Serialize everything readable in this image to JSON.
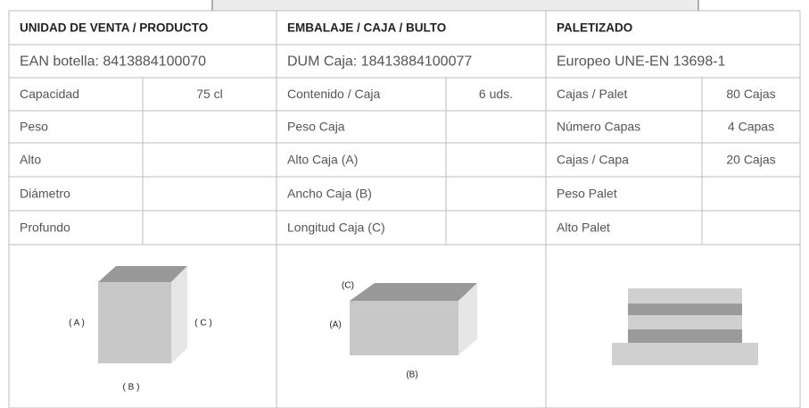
{
  "sections": [
    {
      "title": "UNIDAD DE VENTA / PRODUCTO",
      "code": "EAN botella:  8413884100070",
      "rows": [
        [
          "Capacidad",
          "75 cl"
        ],
        [
          "Peso"
        ],
        [
          "Alto"
        ],
        [
          "Diámetro"
        ],
        [
          "Profundo"
        ]
      ],
      "diagram_labels": [
        "( A )",
        "( C )",
        "( B )"
      ]
    },
    {
      "title": "EMBALAJE / CAJA / BULTO",
      "code": "DUM Caja:  18413884100077",
      "rows": [
        [
          "Contenido / Caja",
          "6 uds."
        ],
        [
          "Peso Caja"
        ],
        [
          "Alto Caja (A)"
        ],
        [
          "Ancho Caja (B)"
        ],
        [
          "Longitud Caja (C)"
        ]
      ],
      "diagram_labels": [
        "(C)",
        "(A)",
        "(B)"
      ]
    },
    {
      "title": "PALETIZADO",
      "code": "Europeo UNE-EN 13698-1",
      "rows": [
        [
          "Cajas / Palet",
          "80 Cajas"
        ],
        [
          "Número Capas",
          "4 Capas"
        ],
        [
          "Cajas / Capa",
          "20 Cajas"
        ],
        [
          "Peso Palet"
        ],
        [
          "Alto Palet"
        ]
      ]
    }
  ]
}
